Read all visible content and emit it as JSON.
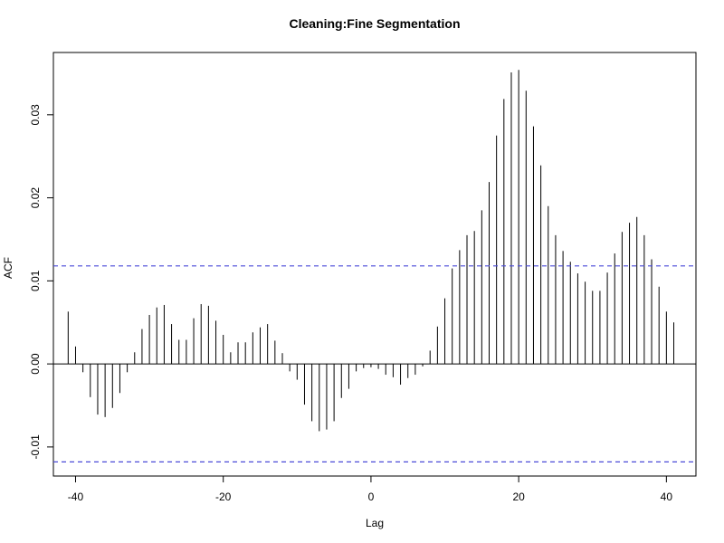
{
  "chart_data": {
    "type": "bar",
    "title": "Cleaning:Fine Segmentation",
    "xlabel": "Lag",
    "ylabel": "ACF",
    "xlim": [
      -43,
      44
    ],
    "ylim": [
      -0.0135,
      0.0375
    ],
    "x_ticks": [
      -40,
      -20,
      0,
      20,
      40
    ],
    "x_tick_labels": [
      "-40",
      "-20",
      "0",
      "20",
      "40"
    ],
    "y_ticks": [
      -0.01,
      0.0,
      0.01,
      0.02,
      0.03
    ],
    "y_tick_labels": [
      "-0.01",
      "0.00",
      "0.01",
      "0.02",
      "0.03"
    ],
    "confidence_bounds": [
      0.0118,
      -0.0118
    ],
    "ci_color": "#4a4ad8",
    "bar_color": "#000000",
    "grid": false,
    "x": [
      -41,
      -40,
      -39,
      -38,
      -37,
      -36,
      -35,
      -34,
      -33,
      -32,
      -31,
      -30,
      -29,
      -28,
      -27,
      -26,
      -25,
      -24,
      -23,
      -22,
      -21,
      -20,
      -19,
      -18,
      -17,
      -16,
      -15,
      -14,
      -13,
      -12,
      -11,
      -10,
      -9,
      -8,
      -7,
      -6,
      -5,
      -4,
      -3,
      -2,
      -1,
      0,
      1,
      2,
      3,
      4,
      5,
      6,
      7,
      8,
      9,
      10,
      11,
      12,
      13,
      14,
      15,
      16,
      17,
      18,
      19,
      20,
      21,
      22,
      23,
      24,
      25,
      26,
      27,
      28,
      29,
      30,
      31,
      32,
      33,
      34,
      35,
      36,
      37,
      38,
      39,
      40,
      41
    ],
    "values": [
      0.0063,
      0.0021,
      -0.001,
      -0.004,
      -0.0061,
      -0.0064,
      -0.0053,
      -0.0035,
      -0.001,
      0.0014,
      0.0042,
      0.0059,
      0.0068,
      0.0071,
      0.0048,
      0.0029,
      0.0029,
      0.0055,
      0.0072,
      0.007,
      0.0052,
      0.0035,
      0.0014,
      0.0026,
      0.0026,
      0.0038,
      0.0044,
      0.0048,
      0.0028,
      0.0013,
      -0.0009,
      -0.0019,
      -0.0049,
      -0.0069,
      -0.0081,
      -0.0079,
      -0.0069,
      -0.0041,
      -0.003,
      -0.0009,
      -0.0005,
      -0.0004,
      -0.0006,
      -0.0013,
      -0.0016,
      -0.0025,
      -0.0017,
      -0.0013,
      -0.0003,
      0.0016,
      0.0045,
      0.0079,
      0.0115,
      0.0137,
      0.0155,
      0.016,
      0.0185,
      0.0219,
      0.0275,
      0.0319,
      0.0351,
      0.0354,
      0.0329,
      0.0286,
      0.0239,
      0.019,
      0.0155,
      0.0136,
      0.0123,
      0.0109,
      0.0099,
      0.0088,
      0.0088,
      0.011,
      0.0133,
      0.0159,
      0.017,
      0.0177,
      0.0155,
      0.0126,
      0.0093,
      0.0063,
      0.005
    ]
  }
}
